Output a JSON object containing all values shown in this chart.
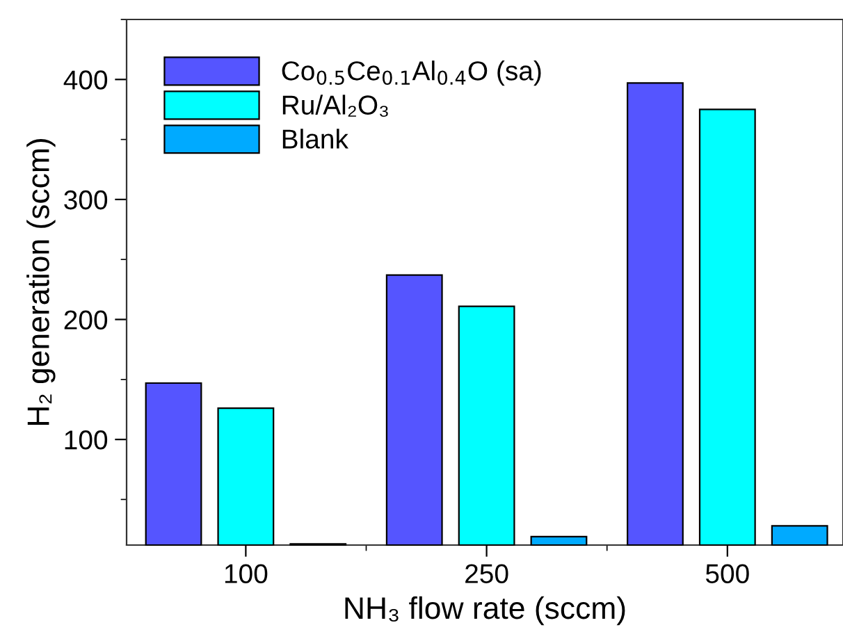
{
  "chart_data": {
    "type": "bar",
    "xlabel": "NH₃ flow rate (sccm)",
    "ylabel": "H₂ generation (sccm)",
    "categories": [
      "100",
      "250",
      "500"
    ],
    "series": [
      {
        "name": "Co$_{0.5}$Ce$_{0.1}$Al$_{0.4}$O (sa)",
        "color": "#5555ff",
        "values": [
          147,
          237,
          397
        ]
      },
      {
        "name": "Ru/Al₂O₃",
        "color": "#00ffff",
        "values": [
          126,
          211,
          375
        ]
      },
      {
        "name": "Blank",
        "color": "#00aaff",
        "values": [
          13,
          19,
          28
        ]
      }
    ],
    "ylim": [
      12,
      450
    ],
    "yticks": [
      100,
      200,
      300,
      400
    ],
    "grid": false,
    "legend": "top left"
  }
}
